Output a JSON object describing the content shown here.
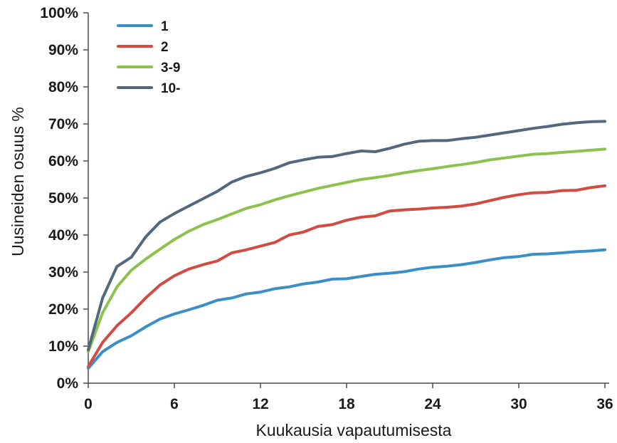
{
  "chart_data": {
    "type": "line",
    "title": "",
    "xlabel": "Kuukausia vapautumisesta",
    "ylabel": "Uusineiden osuus %",
    "xlim": [
      0,
      36
    ],
    "ylim": [
      0,
      100
    ],
    "xticks": [
      0,
      6,
      12,
      18,
      24,
      30,
      36
    ],
    "xtick_labels": [
      "0",
      "6",
      "12",
      "18",
      "24",
      "30",
      "36"
    ],
    "yticks": [
      0,
      10,
      20,
      30,
      40,
      50,
      60,
      70,
      80,
      90,
      100
    ],
    "ytick_labels": [
      "0%",
      "10%",
      "20%",
      "30%",
      "40%",
      "50%",
      "60%",
      "70%",
      "80%",
      "90%",
      "100%"
    ],
    "grid": false,
    "legend_position": "top-left",
    "x": [
      0,
      1,
      2,
      3,
      4,
      5,
      6,
      7,
      8,
      9,
      10,
      11,
      12,
      13,
      14,
      15,
      16,
      17,
      18,
      19,
      20,
      21,
      22,
      23,
      24,
      25,
      26,
      27,
      28,
      29,
      30,
      31,
      32,
      33,
      34,
      35,
      36
    ],
    "series": [
      {
        "name": "1",
        "color": "#3a8fc7",
        "values": [
          4,
          8.5,
          11,
          12.8,
          15.2,
          17.3,
          18.7,
          19.8,
          21,
          22.4,
          23,
          24.1,
          24.6,
          25.5,
          26,
          26.8,
          27.3,
          28.1,
          28.2,
          28.8,
          29.4,
          29.7,
          30.1,
          30.8,
          31.3,
          31.6,
          32,
          32.6,
          33.3,
          33.9,
          34.2,
          34.8,
          34.9,
          35.2,
          35.5,
          35.7,
          36
        ]
      },
      {
        "name": "2",
        "color": "#d24b43",
        "values": [
          4.5,
          11,
          15.5,
          19,
          23,
          26.5,
          29,
          30.8,
          32,
          33,
          35.2,
          36,
          37,
          38,
          40,
          40.8,
          42.3,
          42.8,
          44,
          44.8,
          45.2,
          46.5,
          46.8,
          47,
          47.3,
          47.5,
          47.8,
          48.4,
          49.3,
          50.2,
          50.9,
          51.4,
          51.5,
          52,
          52.1,
          52.8,
          53.3
        ]
      },
      {
        "name": "3-9",
        "color": "#8cc24c",
        "values": [
          8.5,
          19,
          26,
          30.5,
          33.5,
          36.2,
          38.8,
          41,
          42.8,
          44.2,
          45.7,
          47.2,
          48.2,
          49.5,
          50.6,
          51.6,
          52.6,
          53.4,
          54.2,
          55,
          55.5,
          56.1,
          56.8,
          57.4,
          57.9,
          58.5,
          59,
          59.6,
          60.3,
          60.8,
          61.3,
          61.8,
          62,
          62.3,
          62.6,
          62.9,
          63.2
        ]
      },
      {
        "name": "10-",
        "color": "#53687c",
        "values": [
          9,
          23,
          31.5,
          34,
          39.5,
          43.5,
          45.8,
          47.8,
          49.8,
          51.8,
          54.3,
          55.8,
          56.8,
          58,
          59.5,
          60.3,
          61,
          61.2,
          62,
          62.7,
          62.5,
          63.4,
          64.5,
          65.3,
          65.5,
          65.5,
          66,
          66.4,
          67,
          67.6,
          68.2,
          68.8,
          69.3,
          69.9,
          70.3,
          70.6,
          70.7
        ]
      }
    ]
  }
}
